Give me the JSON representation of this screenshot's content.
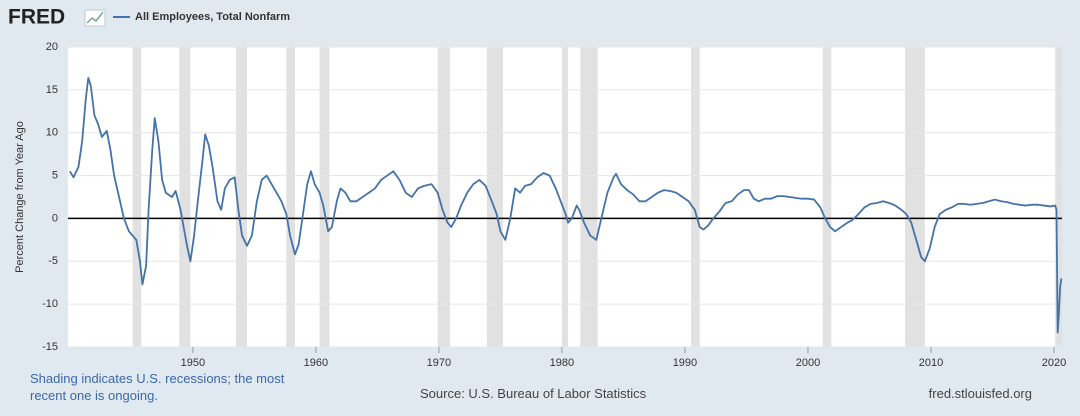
{
  "chart_data": {
    "type": "line",
    "logo": "FRED",
    "ylabel": "Percent Change from Year Ago",
    "note": "Shading indicates U.S. recessions; the most recent one is ongoing.",
    "source": "Source: U.S. Bureau of Labor Statistics",
    "site": "fred.stlouisfed.org",
    "xlim": [
      1939.85,
      2020.65
    ],
    "ylim": [
      -15,
      20
    ],
    "yticks": [
      -15,
      -10,
      -5,
      0,
      5,
      10,
      15,
      20
    ],
    "xticks": [
      1950,
      1960,
      1970,
      1980,
      1990,
      2000,
      2010,
      2020
    ],
    "grid": true,
    "recessions": [
      [
        1945.1,
        1945.8
      ],
      [
        1948.9,
        1949.8
      ],
      [
        1953.5,
        1954.4
      ],
      [
        1957.6,
        1958.3
      ],
      [
        1960.3,
        1961.1
      ],
      [
        1969.9,
        1970.9
      ],
      [
        1973.9,
        1975.2
      ],
      [
        1980.0,
        1980.5
      ],
      [
        1981.5,
        1982.9
      ],
      [
        1990.5,
        1991.2
      ],
      [
        2001.2,
        2001.9
      ],
      [
        2007.9,
        2009.5
      ],
      [
        2020.1,
        2020.65
      ]
    ],
    "recession_color": "#e1e1e1",
    "x": [
      1940.0,
      1940.3,
      1940.7,
      1941.0,
      1941.3,
      1941.5,
      1941.7,
      1942.0,
      1942.3,
      1942.6,
      1943.0,
      1943.3,
      1943.6,
      1944.0,
      1944.4,
      1944.8,
      1945.1,
      1945.4,
      1945.7,
      1945.9,
      1946.2,
      1946.4,
      1946.7,
      1946.9,
      1947.2,
      1947.5,
      1947.8,
      1948.3,
      1948.6,
      1949.0,
      1949.5,
      1949.8,
      1950.1,
      1950.4,
      1950.8,
      1951.0,
      1951.3,
      1951.6,
      1952.0,
      1952.3,
      1952.6,
      1953.0,
      1953.4,
      1953.7,
      1954.0,
      1954.4,
      1954.8,
      1955.2,
      1955.6,
      1956.0,
      1956.4,
      1956.8,
      1957.2,
      1957.6,
      1957.9,
      1958.3,
      1958.6,
      1958.9,
      1959.3,
      1959.6,
      1959.9,
      1960.3,
      1960.6,
      1961.0,
      1961.3,
      1961.7,
      1962.0,
      1962.4,
      1962.8,
      1963.3,
      1963.8,
      1964.3,
      1964.8,
      1965.3,
      1965.8,
      1966.3,
      1966.8,
      1967.3,
      1967.8,
      1968.3,
      1968.8,
      1969.4,
      1969.9,
      1970.3,
      1970.7,
      1971.0,
      1971.4,
      1971.8,
      1972.3,
      1972.8,
      1973.3,
      1973.8,
      1974.3,
      1974.7,
      1975.0,
      1975.4,
      1975.8,
      1976.2,
      1976.6,
      1977.0,
      1977.5,
      1978.0,
      1978.5,
      1979.0,
      1979.5,
      1979.9,
      1980.3,
      1980.5,
      1980.8,
      1981.2,
      1981.4,
      1981.8,
      1982.3,
      1982.8,
      1983.2,
      1983.7,
      1984.2,
      1984.4,
      1984.8,
      1985.3,
      1985.8,
      1986.3,
      1986.8,
      1987.3,
      1987.8,
      1988.3,
      1988.8,
      1989.3,
      1989.8,
      1990.3,
      1990.8,
      1991.2,
      1991.5,
      1991.9,
      1992.3,
      1992.8,
      1993.3,
      1993.8,
      1994.3,
      1994.8,
      1995.2,
      1995.6,
      1996.0,
      1996.5,
      1997.0,
      1997.5,
      1998.0,
      1998.5,
      1999.0,
      1999.5,
      2000.0,
      2000.5,
      2001.0,
      2001.4,
      2001.8,
      2002.2,
      2002.7,
      2003.2,
      2003.6,
      2004.1,
      2004.6,
      2005.1,
      2005.6,
      2006.1,
      2006.6,
      2007.1,
      2007.6,
      2008.0,
      2008.4,
      2008.8,
      2009.2,
      2009.5,
      2009.9,
      2010.3,
      2010.7,
      2011.2,
      2011.7,
      2012.2,
      2012.7,
      2013.2,
      2013.7,
      2014.2,
      2014.7,
      2015.2,
      2015.7,
      2016.2,
      2016.7,
      2017.2,
      2017.7,
      2018.2,
      2018.7,
      2019.2,
      2019.7,
      2020.1,
      2020.2,
      2020.3,
      2020.4,
      2020.5,
      2020.6
    ],
    "series": [
      {
        "name": "All Employees, Total Nonfarm",
        "color": "#4572a7",
        "values": [
          5.5,
          4.8,
          6,
          9,
          14,
          16.4,
          15.5,
          12,
          11,
          9.5,
          10.2,
          8,
          5,
          2.5,
          0,
          -1.5,
          -2,
          -2.5,
          -5,
          -7.7,
          -5.5,
          1,
          8,
          11.7,
          9,
          4.5,
          3,
          2.5,
          3.2,
          1,
          -3,
          -5,
          -2,
          2,
          7,
          9.8,
          8.5,
          6,
          2,
          1,
          3.5,
          4.5,
          4.8,
          1,
          -2,
          -3.2,
          -2,
          2,
          4.5,
          5,
          4,
          3,
          2,
          0.5,
          -2,
          -4.2,
          -3,
          0,
          4,
          5.5,
          4,
          3,
          1.5,
          -1.5,
          -1,
          2,
          3.5,
          3,
          2,
          2,
          2.5,
          3,
          3.5,
          4.5,
          5,
          5.5,
          4.5,
          3,
          2.5,
          3.5,
          3.8,
          4,
          3,
          1,
          -0.5,
          -1,
          0,
          1.5,
          3,
          4,
          4.5,
          3.8,
          2,
          0.5,
          -1.5,
          -2.5,
          0,
          3.5,
          3,
          3.8,
          4,
          4.8,
          5.3,
          5,
          3.5,
          2,
          0.5,
          -0.5,
          0,
          1.5,
          1,
          -0.5,
          -2,
          -2.5,
          0,
          3,
          4.8,
          5.2,
          4,
          3.3,
          2.8,
          2,
          2,
          2.5,
          3,
          3.3,
          3.2,
          3,
          2.5,
          2,
          1,
          -1,
          -1.3,
          -0.8,
          0,
          0.8,
          1.8,
          2,
          2.8,
          3.3,
          3.3,
          2.3,
          2,
          2.3,
          2.3,
          2.6,
          2.6,
          2.5,
          2.4,
          2.3,
          2.3,
          2.2,
          1.3,
          0,
          -1,
          -1.5,
          -1,
          -0.5,
          -0.2,
          0.5,
          1.3,
          1.7,
          1.8,
          2,
          1.8,
          1.5,
          1,
          0.5,
          -0.5,
          -2.5,
          -4.5,
          -5,
          -3.5,
          -1,
          0.5,
          1,
          1.3,
          1.7,
          1.7,
          1.6,
          1.7,
          1.8,
          2,
          2.2,
          2,
          1.9,
          1.7,
          1.6,
          1.5,
          1.6,
          1.6,
          1.5,
          1.4,
          1.5,
          1,
          -13.3,
          -11,
          -8,
          -7
        ]
      }
    ]
  }
}
